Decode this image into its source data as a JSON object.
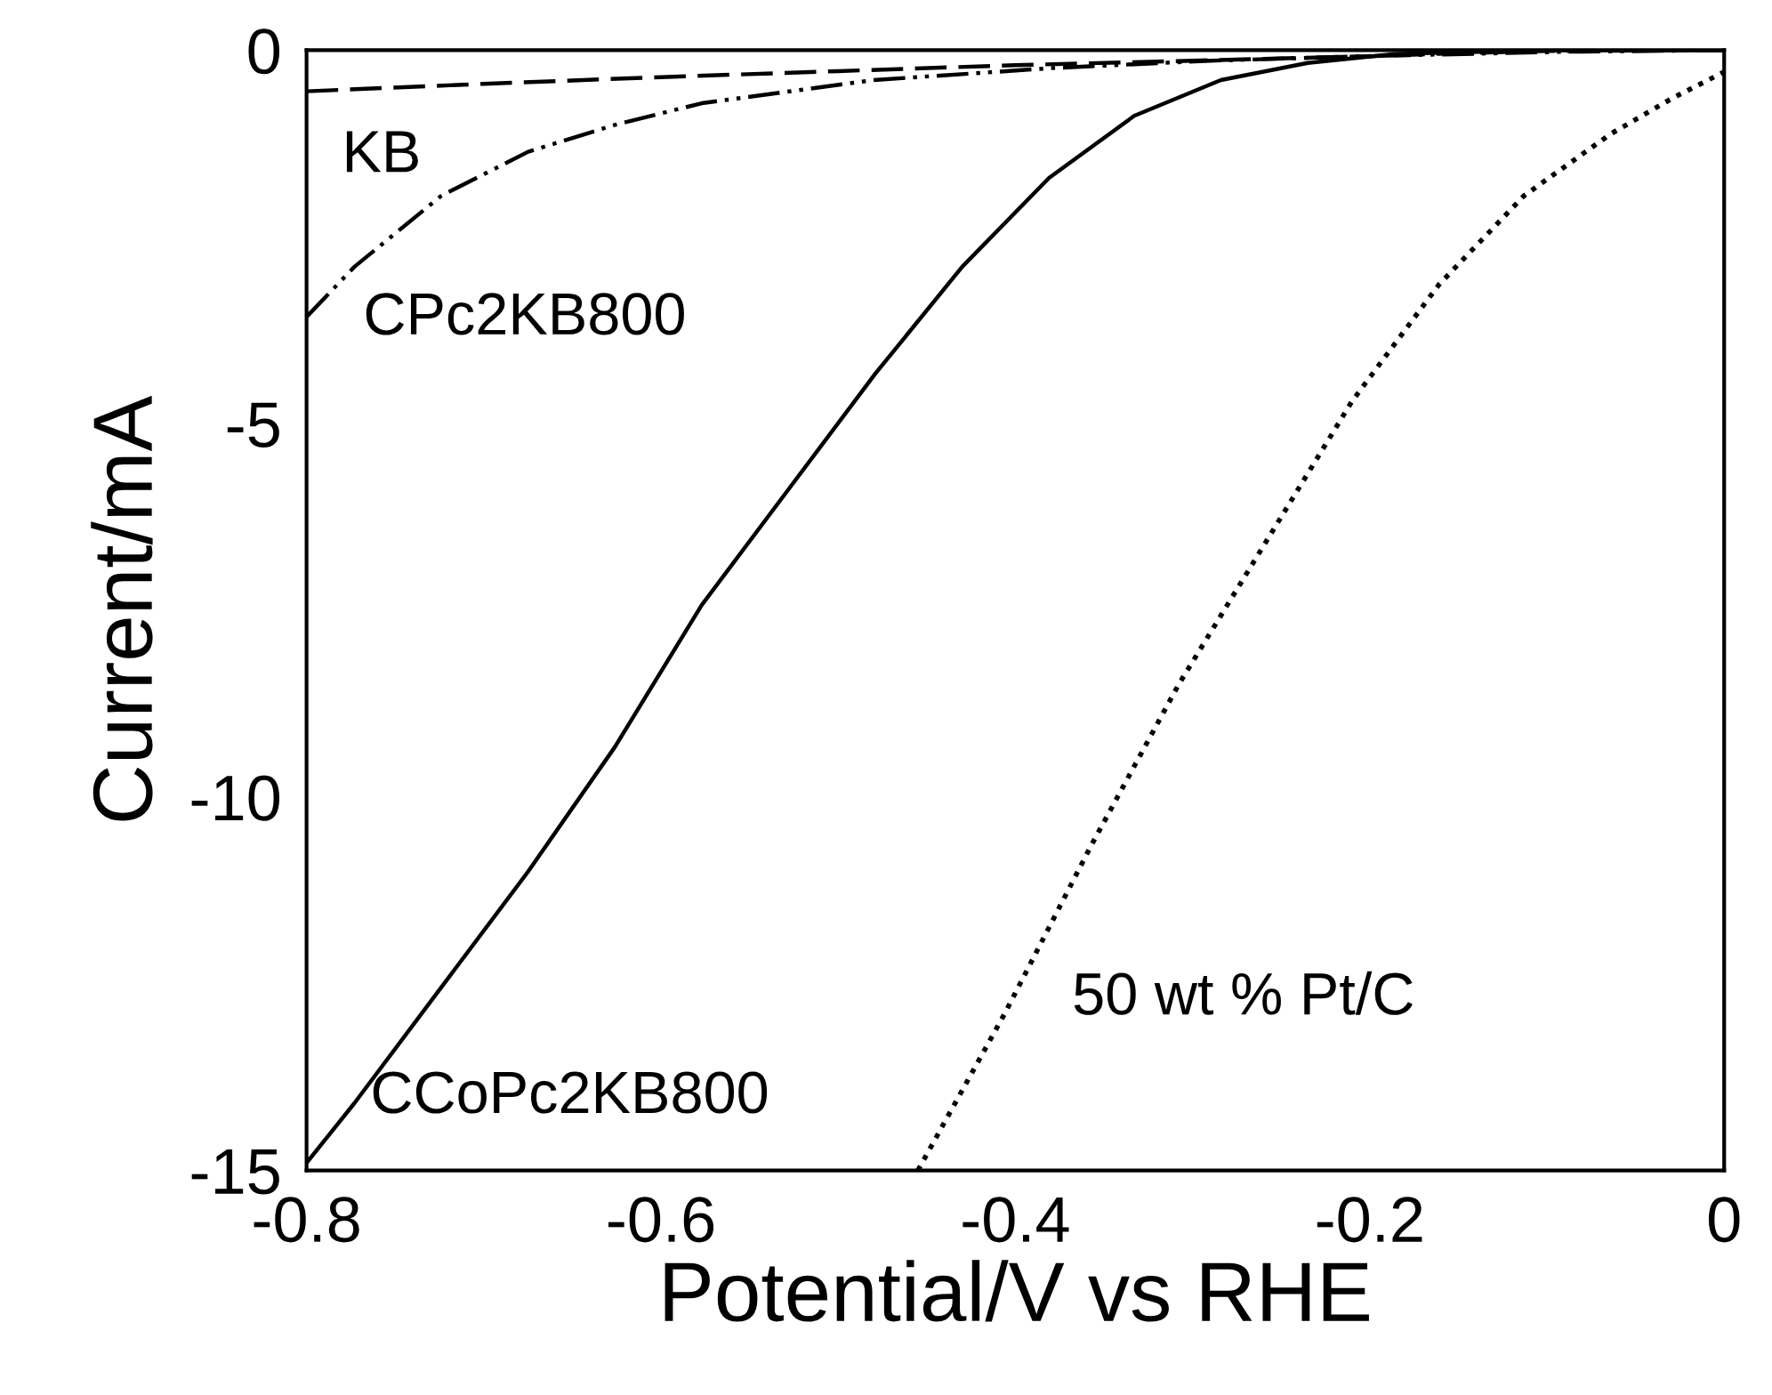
{
  "chart_data": {
    "type": "line",
    "xlabel": "Potential/V vs RHE",
    "ylabel": "Current/mA",
    "xlim": [
      -0.8,
      0
    ],
    "ylim": [
      -15,
      0
    ],
    "xticks": [
      -0.8,
      -0.6,
      -0.4,
      -0.2,
      0
    ],
    "yticks": [
      -15,
      -10,
      -5,
      0
    ],
    "grid": false,
    "legend": false,
    "series": [
      {
        "color": "#000000",
        "line_style": "dashed",
        "x": [
          -0.8,
          -0.7,
          -0.6,
          -0.5,
          -0.4,
          -0.3,
          -0.2,
          -0.15,
          -0.1,
          0
        ],
        "values": [
          -0.55,
          -0.45,
          -0.36,
          -0.28,
          -0.2,
          -0.14,
          -0.08,
          -0.04,
          -0.01,
          0
        ]
      },
      {
        "color": "#000000",
        "line_style": "dashdotdot",
        "x": [
          -0.8,
          -0.773,
          -0.724,
          -0.675,
          -0.626,
          -0.577,
          -0.48,
          -0.38,
          -0.29,
          -0.186,
          -0.088,
          0
        ],
        "values": [
          -3.57,
          -2.9,
          -1.95,
          -1.36,
          -1.0,
          -0.71,
          -0.4,
          -0.24,
          -0.14,
          -0.07,
          -0.02,
          0
        ]
      },
      {
        "color": "#000000",
        "line_style": "solid",
        "x": [
          -0.8,
          -0.773,
          -0.724,
          -0.675,
          -0.626,
          -0.577,
          -0.528,
          -0.479,
          -0.43,
          -0.381,
          -0.333,
          -0.284,
          -0.235,
          -0.186,
          -0.1,
          0
        ],
        "values": [
          -14.9,
          -14.1,
          -12.55,
          -11.0,
          -9.33,
          -7.43,
          -5.88,
          -4.33,
          -2.9,
          -1.71,
          -0.88,
          -0.4,
          -0.17,
          -0.05,
          0,
          0
        ]
      },
      {
        "color": "#000000",
        "line_style": "dotted",
        "x": [
          -0.455,
          -0.406,
          -0.357,
          -0.308,
          -0.259,
          -0.21,
          -0.161,
          -0.113,
          -0.064,
          -0.029,
          0
        ],
        "values": [
          -15,
          -12.9,
          -10.64,
          -8.5,
          -6.6,
          -4.7,
          -3.14,
          -1.95,
          -1.12,
          -0.64,
          -0.29
        ]
      }
    ],
    "annotations": [
      "KB",
      "CPc2KB800",
      "CCoPc2KB800",
      "50 wt % Pt/C"
    ]
  }
}
